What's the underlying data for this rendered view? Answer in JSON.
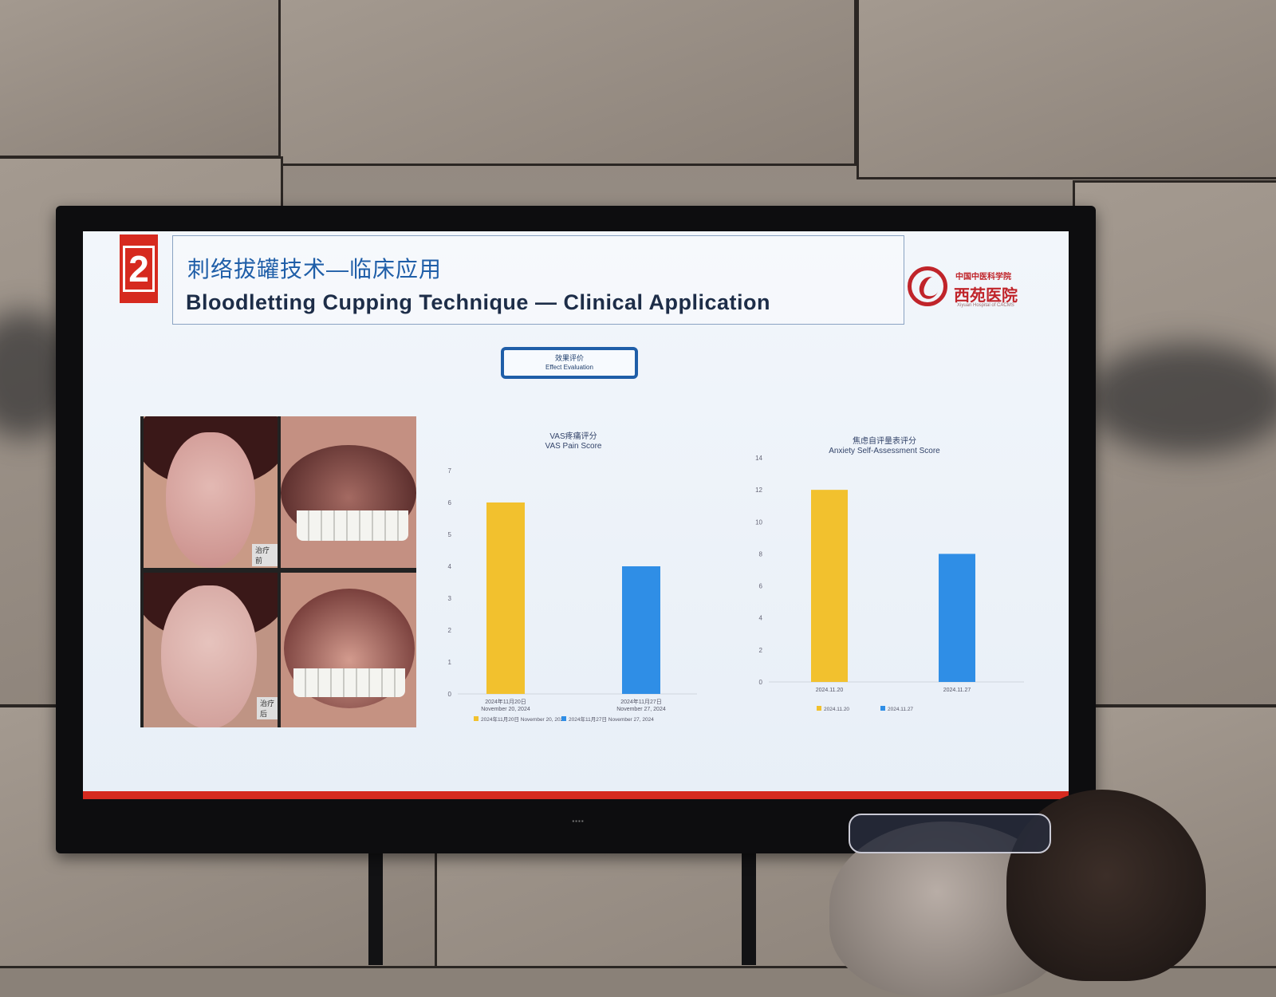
{
  "slide": {
    "section_number": "2",
    "title_cn": "刺络拔罐技术—临床应用",
    "title_en": "Bloodletting Cupping Technique — Clinical Application",
    "logo": {
      "line1": "中国中医科学院",
      "line2": "西苑医院",
      "line3": "Xiyuan Hospital of CACMS",
      "color": "#c0242a"
    },
    "section_button": {
      "cn": "效果评价",
      "en": "Effect Evaluation"
    },
    "photo_captions": [
      "治疗前",
      "治疗后"
    ],
    "accent_color": "#d62a1f",
    "title_color": "#1f5ea8"
  },
  "chart_data": [
    {
      "type": "bar",
      "title": "VAS疼痛评分",
      "subtitle": "VAS Pain Score",
      "categories": [
        "2024年11月20日\nNovember 20, 2024",
        "2024年11月27日\nNovember 27, 2024"
      ],
      "values": [
        6,
        4
      ],
      "colors": [
        "#f2c12e",
        "#2f8ee6"
      ],
      "ylim": [
        0,
        7
      ],
      "yticks": [
        0,
        1,
        2,
        3,
        4,
        5,
        6,
        7
      ],
      "legend": [
        "2024年11月20日 November 20, 2024",
        "2024年11月27日 November 27, 2024"
      ],
      "legend_position": "bottom",
      "grid": false
    },
    {
      "type": "bar",
      "title": "焦虑自评量表评分",
      "subtitle": "Anxiety Self-Assessment Score",
      "categories": [
        "2024.11.20",
        "2024.11.27"
      ],
      "values": [
        12,
        8
      ],
      "colors": [
        "#f2c12e",
        "#2f8ee6"
      ],
      "ylim": [
        0,
        14
      ],
      "yticks": [
        0,
        2,
        4,
        6,
        8,
        10,
        12,
        14
      ],
      "legend": [
        "2024.11.20",
        "2024.11.27"
      ],
      "legend_position": "bottom",
      "grid": false
    }
  ]
}
